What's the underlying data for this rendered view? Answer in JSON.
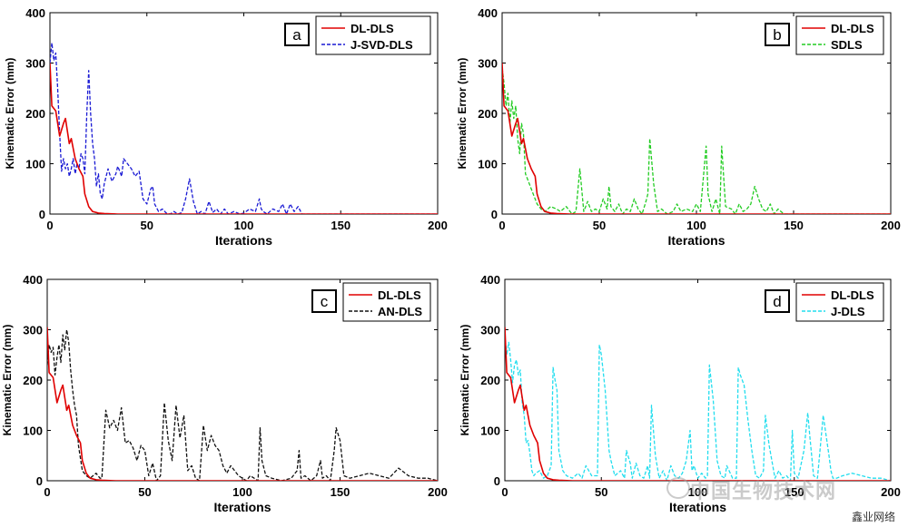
{
  "chart_data": [
    {
      "type": "line",
      "panel_label": "a",
      "xlabel": "Iterations",
      "ylabel": "Kinematic Error (mm)",
      "xlim": [
        0,
        200
      ],
      "ylim": [
        0,
        400
      ],
      "xticks": [
        0,
        50,
        100,
        150,
        200
      ],
      "yticks": [
        0,
        100,
        200,
        300,
        400
      ],
      "legend_position": "top-right",
      "series": [
        {
          "name": "DL-DLS",
          "color": "#e00000",
          "style": "solid",
          "x": [
            0,
            1,
            3,
            5,
            7,
            8,
            10,
            11,
            13,
            15,
            17,
            18,
            20,
            22,
            25,
            28,
            35,
            50,
            200
          ],
          "y": [
            300,
            215,
            205,
            155,
            180,
            190,
            140,
            150,
            110,
            90,
            75,
            40,
            15,
            5,
            2,
            1,
            0,
            0,
            0
          ]
        },
        {
          "name": "J-SVD-DLS",
          "color": "#1a1ad4",
          "style": "dashed",
          "x": [
            0,
            1,
            2,
            3,
            4,
            5,
            6,
            7,
            8,
            9,
            10,
            11,
            12,
            13,
            14,
            15,
            16,
            17,
            18,
            19,
            20,
            21,
            22,
            23,
            24,
            25,
            26,
            27,
            28,
            30,
            32,
            34,
            35,
            37,
            38,
            40,
            42,
            44,
            46,
            48,
            50,
            52,
            53,
            54,
            56,
            58,
            60,
            62,
            64,
            66,
            68,
            70,
            72,
            74,
            76,
            78,
            80,
            82,
            84,
            86,
            88,
            90,
            92,
            95,
            98,
            100,
            103,
            106,
            108,
            109,
            110,
            112,
            115,
            118,
            120,
            122,
            124,
            126,
            128,
            130,
            131,
            150,
            200
          ],
          "y": [
            300,
            340,
            305,
            320,
            250,
            160,
            85,
            110,
            90,
            100,
            75,
            90,
            110,
            80,
            100,
            90,
            120,
            110,
            80,
            200,
            285,
            200,
            140,
            110,
            55,
            80,
            40,
            30,
            60,
            90,
            65,
            80,
            95,
            75,
            110,
            100,
            90,
            75,
            85,
            30,
            20,
            50,
            55,
            20,
            5,
            10,
            2,
            0,
            5,
            0,
            3,
            30,
            70,
            25,
            0,
            5,
            0,
            25,
            3,
            10,
            0,
            10,
            0,
            5,
            0,
            2,
            10,
            5,
            30,
            10,
            5,
            0,
            10,
            5,
            20,
            0,
            20,
            5,
            15,
            0,
            0,
            0,
            0
          ]
        }
      ]
    },
    {
      "type": "line",
      "panel_label": "b",
      "xlabel": "Iterations",
      "ylabel": "Kinematic Error (mm)",
      "xlim": [
        0,
        200
      ],
      "ylim": [
        0,
        400
      ],
      "xticks": [
        0,
        50,
        100,
        150,
        200
      ],
      "yticks": [
        0,
        100,
        200,
        300,
        400
      ],
      "legend_position": "top-right",
      "series": [
        {
          "name": "DL-DLS",
          "color": "#e00000",
          "style": "solid",
          "x": [
            0,
            1,
            3,
            5,
            7,
            8,
            10,
            11,
            13,
            15,
            17,
            18,
            20,
            22,
            25,
            28,
            35,
            50,
            140,
            200
          ],
          "y": [
            300,
            215,
            205,
            155,
            180,
            190,
            140,
            150,
            110,
            90,
            75,
            40,
            15,
            5,
            2,
            1,
            0,
            0,
            0,
            0
          ]
        },
        {
          "name": "SDLS",
          "color": "#22cc22",
          "style": "dashed",
          "x": [
            0,
            1,
            2,
            3,
            4,
            5,
            6,
            7,
            8,
            9,
            10,
            11,
            12,
            14,
            16,
            18,
            20,
            22,
            25,
            28,
            30,
            33,
            36,
            38,
            40,
            42,
            44,
            46,
            48,
            50,
            52,
            54,
            55,
            56,
            58,
            60,
            62,
            64,
            66,
            68,
            70,
            72,
            74,
            75,
            76,
            78,
            80,
            82,
            85,
            88,
            90,
            92,
            95,
            98,
            100,
            102,
            105,
            106,
            108,
            110,
            112,
            113,
            115,
            118,
            120,
            122,
            124,
            126,
            128,
            130,
            132,
            134,
            136,
            138,
            140,
            142,
            145,
            150,
            200
          ],
          "y": [
            290,
            260,
            215,
            240,
            180,
            225,
            190,
            215,
            150,
            120,
            180,
            160,
            80,
            60,
            40,
            20,
            10,
            5,
            15,
            10,
            5,
            15,
            0,
            5,
            90,
            5,
            25,
            5,
            10,
            5,
            30,
            10,
            55,
            15,
            5,
            20,
            0,
            10,
            5,
            30,
            10,
            0,
            25,
            40,
            150,
            60,
            5,
            10,
            0,
            5,
            20,
            5,
            10,
            5,
            20,
            5,
            135,
            40,
            5,
            30,
            0,
            135,
            15,
            10,
            0,
            20,
            5,
            10,
            20,
            55,
            30,
            10,
            5,
            20,
            0,
            10,
            0,
            0,
            0
          ]
        }
      ]
    },
    {
      "type": "line",
      "panel_label": "c",
      "xlabel": "Iterations",
      "ylabel": "Kinematic Error (mm)",
      "xlim": [
        0,
        200
      ],
      "ylim": [
        0,
        400
      ],
      "xticks": [
        0,
        50,
        100,
        150,
        200
      ],
      "yticks": [
        0,
        100,
        200,
        300,
        400
      ],
      "legend_position": "top-right",
      "series": [
        {
          "name": "DL-DLS",
          "color": "#e00000",
          "style": "solid",
          "x": [
            0,
            1,
            3,
            5,
            7,
            8,
            10,
            11,
            13,
            15,
            17,
            18,
            20,
            22,
            25,
            28,
            35,
            50,
            200
          ],
          "y": [
            305,
            215,
            205,
            155,
            180,
            190,
            140,
            150,
            110,
            90,
            75,
            40,
            15,
            5,
            2,
            1,
            0,
            0,
            0
          ]
        },
        {
          "name": "AN-DLS",
          "color": "#111111",
          "style": "dashed",
          "x": [
            0,
            1,
            2,
            3,
            4,
            5,
            6,
            7,
            8,
            9,
            10,
            11,
            12,
            13,
            14,
            15,
            16,
            18,
            20,
            22,
            25,
            27,
            28,
            30,
            32,
            34,
            36,
            38,
            40,
            42,
            44,
            46,
            48,
            50,
            52,
            54,
            56,
            58,
            60,
            62,
            64,
            66,
            68,
            70,
            72,
            74,
            76,
            78,
            80,
            82,
            84,
            86,
            88,
            90,
            92,
            94,
            96,
            98,
            100,
            102,
            104,
            106,
            108,
            109,
            110,
            112,
            115,
            120,
            125,
            128,
            129,
            130,
            132,
            135,
            138,
            140,
            141,
            143,
            145,
            147,
            148,
            150,
            152,
            155,
            160,
            165,
            170,
            175,
            180,
            185,
            190,
            195,
            200
          ],
          "y": [
            230,
            270,
            255,
            265,
            210,
            245,
            270,
            235,
            290,
            260,
            300,
            275,
            220,
            180,
            150,
            130,
            70,
            20,
            10,
            5,
            15,
            5,
            5,
            140,
            105,
            120,
            100,
            145,
            75,
            80,
            65,
            40,
            70,
            60,
            10,
            35,
            0,
            10,
            155,
            80,
            40,
            150,
            85,
            130,
            20,
            30,
            5,
            0,
            110,
            60,
            90,
            70,
            60,
            30,
            15,
            30,
            20,
            10,
            5,
            0,
            10,
            5,
            0,
            105,
            40,
            10,
            5,
            0,
            5,
            20,
            60,
            5,
            10,
            0,
            10,
            40,
            5,
            10,
            0,
            60,
            105,
            80,
            10,
            5,
            10,
            15,
            10,
            5,
            25,
            10,
            5,
            5,
            0
          ]
        }
      ]
    },
    {
      "type": "line",
      "panel_label": "d",
      "xlabel": "Iterations",
      "ylabel": "Kinematic Error (mm)",
      "xlim": [
        0,
        200
      ],
      "ylim": [
        0,
        400
      ],
      "xticks": [
        0,
        50,
        100,
        150,
        200
      ],
      "yticks": [
        0,
        100,
        200,
        300,
        400
      ],
      "legend_position": "top-right",
      "series": [
        {
          "name": "DL-DLS",
          "color": "#e00000",
          "style": "solid",
          "x": [
            0,
            1,
            3,
            5,
            7,
            8,
            10,
            11,
            13,
            15,
            17,
            18,
            20,
            22,
            25,
            28,
            35,
            50,
            200
          ],
          "y": [
            305,
            215,
            205,
            155,
            180,
            190,
            140,
            150,
            110,
            90,
            75,
            40,
            15,
            5,
            2,
            1,
            0,
            0,
            0
          ]
        },
        {
          "name": "J-DLS",
          "color": "#22ddee",
          "style": "dashed",
          "x": [
            0,
            1,
            2,
            3,
            4,
            5,
            6,
            7,
            8,
            9,
            10,
            11,
            12,
            13,
            14,
            15,
            16,
            18,
            20,
            22,
            24,
            25,
            26,
            27,
            28,
            30,
            32,
            35,
            38,
            40,
            42,
            45,
            48,
            49,
            50,
            52,
            54,
            55,
            57,
            60,
            62,
            63,
            65,
            66,
            68,
            70,
            72,
            74,
            75,
            76,
            78,
            80,
            82,
            84,
            86,
            88,
            90,
            92,
            94,
            96,
            97,
            98,
            100,
            102,
            104,
            105,
            106,
            108,
            110,
            112,
            114,
            115,
            118,
            120,
            121,
            122,
            124,
            126,
            128,
            130,
            132,
            134,
            135,
            137,
            140,
            142,
            144,
            146,
            148,
            149,
            150,
            152,
            155,
            157,
            158,
            160,
            162,
            165,
            168,
            169,
            170,
            172,
            175,
            180,
            185,
            190,
            195,
            200
          ],
          "y": [
            290,
            250,
            275,
            240,
            195,
            230,
            240,
            210,
            220,
            155,
            130,
            75,
            80,
            55,
            20,
            10,
            15,
            20,
            5,
            10,
            30,
            225,
            200,
            180,
            60,
            20,
            10,
            5,
            15,
            5,
            30,
            10,
            10,
            270,
            250,
            180,
            60,
            40,
            10,
            20,
            5,
            60,
            35,
            5,
            35,
            10,
            5,
            30,
            5,
            150,
            50,
            5,
            20,
            0,
            30,
            10,
            5,
            15,
            40,
            100,
            20,
            30,
            5,
            15,
            5,
            10,
            230,
            160,
            40,
            10,
            5,
            30,
            5,
            5,
            225,
            210,
            190,
            120,
            60,
            10,
            5,
            20,
            130,
            70,
            5,
            20,
            5,
            10,
            0,
            100,
            15,
            5,
            60,
            135,
            90,
            10,
            5,
            130,
            50,
            20,
            5,
            5,
            10,
            15,
            10,
            5,
            5,
            0
          ]
        }
      ]
    }
  ],
  "watermark": "中国生物技术网",
  "footer": "鑫业网络"
}
